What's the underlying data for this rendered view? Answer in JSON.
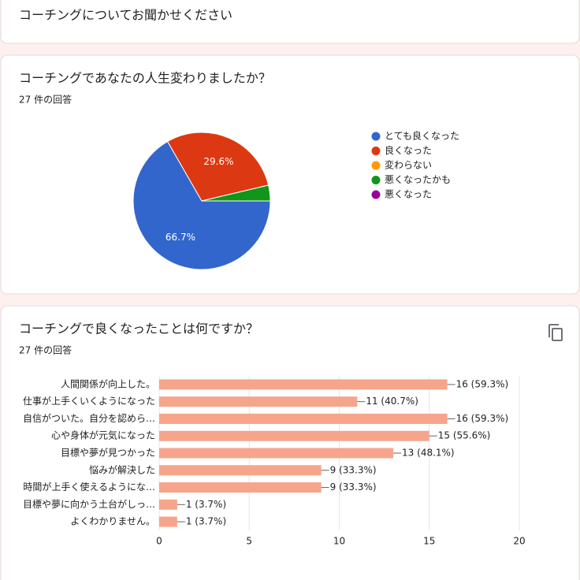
{
  "header": {
    "title": "コーチングについてお聞かせください"
  },
  "chart_data": [
    {
      "type": "pie",
      "title": "コーチングであなたの人生変わりましたか？",
      "subtitle": "27 件の回答",
      "categories": [
        "とても良くなった",
        "良くなった",
        "変わらない",
        "悪くなったかも",
        "悪くなった"
      ],
      "values": [
        66.7,
        29.6,
        0,
        3.7,
        0
      ],
      "value_labels": [
        "66.7%",
        "29.6%",
        null,
        null,
        null
      ],
      "colors": [
        "#3366cc",
        "#dc3912",
        "#ff9900",
        "#109618",
        "#990099"
      ]
    },
    {
      "type": "hbar",
      "title": "コーチングで良くなったことは何ですか？",
      "subtitle": "27 件の回答",
      "categories": [
        "人間関係が向上した。",
        "仕事が上手くいくようになった",
        "自信がついた。自分を認めら…",
        "心や身体が元気になった",
        "目標や夢が見つかった",
        "悩みが解決した",
        "時間が上手く使えるようにな…",
        "目標や夢に向かう土台がしっ…",
        "よくわかりません。"
      ],
      "values": [
        16,
        11,
        16,
        15,
        13,
        9,
        9,
        1,
        1
      ],
      "value_labels": [
        "16 (59.3%)",
        "11 (40.7%)",
        "16 (59.3%)",
        "15 (55.6%)",
        "13 (48.1%)",
        "9 (33.3%)",
        "9 (33.3%)",
        "1 (3.7%)",
        "1 (3.7%)"
      ],
      "color": "#f6a58c",
      "xlim": [
        0,
        20
      ],
      "xticks": [
        0,
        5,
        10,
        15,
        20
      ],
      "grid": true
    }
  ]
}
